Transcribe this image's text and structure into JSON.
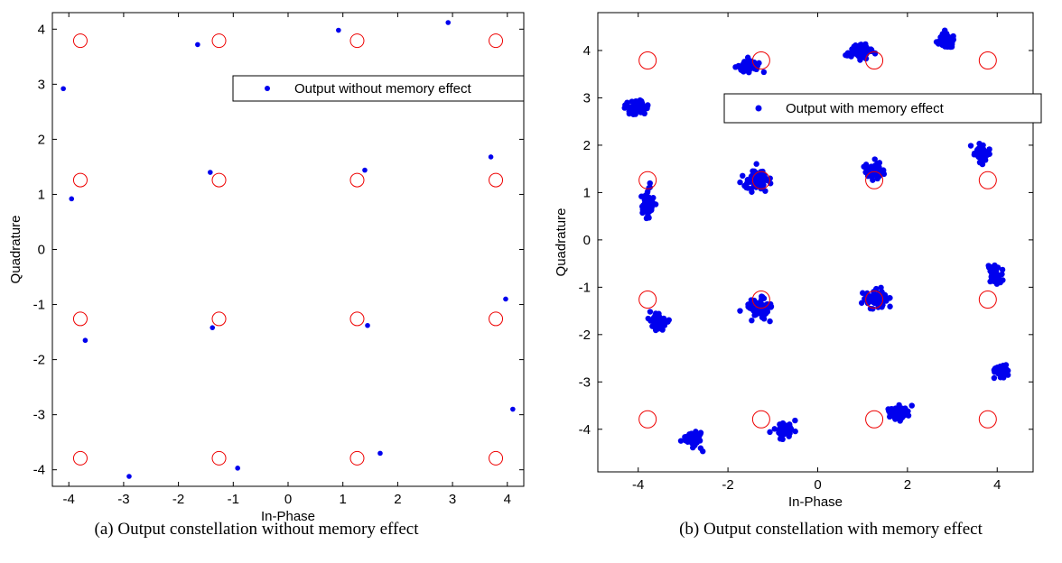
{
  "colors": {
    "data": "#0000ee",
    "reference": "#ee0000",
    "axes": "#000000"
  },
  "chart_data": [
    {
      "type": "scatter",
      "title": "",
      "caption": "(a)  Output constellation without memory effect",
      "xlabel": "In-Phase",
      "ylabel": "Quadrature",
      "xlim": [
        -4.3,
        4.3
      ],
      "ylim": [
        -4.3,
        4.3
      ],
      "xticks": [
        -4,
        -3,
        -2,
        -1,
        0,
        1,
        2,
        3,
        4
      ],
      "yticks": [
        -4,
        -3,
        -2,
        -1,
        0,
        1,
        2,
        3,
        4
      ],
      "grid": false,
      "legend": {
        "placement": "top-right",
        "entries": [
          "Output without memory effect"
        ]
      },
      "reference_points": {
        "levels": [
          -3.79,
          -1.26,
          1.26,
          3.79
        ],
        "marker": "open-circle"
      },
      "series": [
        {
          "name": "Output without memory effect",
          "marker": "filled-dot",
          "x": [
            -4.1,
            -1.65,
            0.92,
            2.92,
            -3.95,
            -1.42,
            1.4,
            3.7,
            -3.7,
            -1.38,
            1.45,
            3.97,
            -2.9,
            -0.92,
            1.68,
            4.1
          ],
          "y": [
            2.92,
            3.72,
            3.98,
            4.12,
            0.92,
            1.4,
            1.44,
            1.68,
            -1.65,
            -1.42,
            -1.38,
            -0.9,
            -4.12,
            -3.97,
            -3.7,
            -2.9
          ]
        }
      ]
    },
    {
      "type": "scatter",
      "title": "",
      "caption": "(b)  Output constellation with memory effect",
      "xlabel": "In-Phase",
      "ylabel": "Quadrature",
      "xlim": [
        -4.9,
        4.8
      ],
      "ylim": [
        -4.9,
        4.8
      ],
      "xticks": [
        -4,
        -2,
        0,
        2,
        4
      ],
      "yticks": [
        -4,
        -3,
        -2,
        -1,
        0,
        1,
        2,
        3,
        4
      ],
      "grid": false,
      "legend": {
        "placement": "top-right",
        "entries": [
          "Output with memory effect"
        ]
      },
      "reference_points": {
        "levels": [
          -3.79,
          -1.26,
          1.26,
          3.79
        ],
        "marker": "open-circle"
      },
      "series": [
        {
          "name": "Output with memory effect",
          "marker": "filled-dot",
          "clusters": [
            {
              "center": [
                -4.05,
                2.78
              ],
              "spread": [
                0.22,
                0.14
              ],
              "points": 70
            },
            {
              "center": [
                -1.55,
                3.68
              ],
              "spread": [
                0.22,
                0.13
              ],
              "points": 70
            },
            {
              "center": [
                0.95,
                3.98
              ],
              "spread": [
                0.23,
                0.13
              ],
              "points": 70
            },
            {
              "center": [
                2.85,
                4.2
              ],
              "spread": [
                0.16,
                0.15
              ],
              "points": 60
            },
            {
              "center": [
                -3.8,
                0.78
              ],
              "spread": [
                0.13,
                0.25
              ],
              "points": 55
            },
            {
              "center": [
                -1.35,
                1.28
              ],
              "spread": [
                0.24,
                0.2
              ],
              "points": 70
            },
            {
              "center": [
                1.25,
                1.45
              ],
              "spread": [
                0.2,
                0.18
              ],
              "points": 55
            },
            {
              "center": [
                3.65,
                1.8
              ],
              "spread": [
                0.14,
                0.2
              ],
              "points": 55
            },
            {
              "center": [
                -3.55,
                -1.72
              ],
              "spread": [
                0.15,
                0.18
              ],
              "points": 60
            },
            {
              "center": [
                -1.3,
                -1.45
              ],
              "spread": [
                0.26,
                0.2
              ],
              "points": 75
            },
            {
              "center": [
                1.3,
                -1.25
              ],
              "spread": [
                0.24,
                0.17
              ],
              "points": 65
            },
            {
              "center": [
                3.98,
                -0.75
              ],
              "spread": [
                0.14,
                0.2
              ],
              "points": 55
            },
            {
              "center": [
                -2.75,
                -4.2
              ],
              "spread": [
                0.17,
                0.16
              ],
              "points": 55
            },
            {
              "center": [
                -0.75,
                -3.98
              ],
              "spread": [
                0.2,
                0.15
              ],
              "points": 60
            },
            {
              "center": [
                1.8,
                -3.65
              ],
              "spread": [
                0.2,
                0.15
              ],
              "points": 65
            },
            {
              "center": [
                4.08,
                -2.78
              ],
              "spread": [
                0.17,
                0.13
              ],
              "points": 50
            }
          ]
        }
      ]
    }
  ]
}
